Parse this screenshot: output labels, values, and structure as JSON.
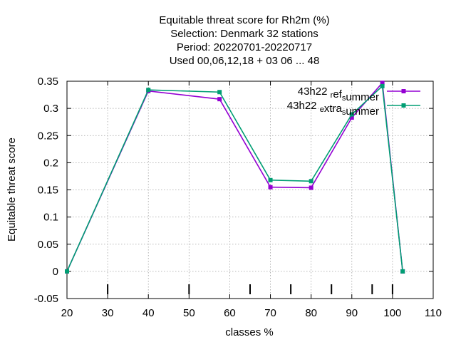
{
  "chart_data": {
    "type": "line",
    "title_lines": [
      "Equitable threat score  for Rh2m (%)",
      "Selection: Denmark     32 stations",
      "Period: 20220701-20220717",
      "Used  00,06,12,18  + 03 06 ... 48"
    ],
    "xlabel": "classes %",
    "ylabel": "Equitable threat score",
    "xlim": [
      20,
      110
    ],
    "ylim": [
      -0.05,
      0.35
    ],
    "x_ticks": [
      "20",
      "30",
      "40",
      "50",
      "60",
      "70",
      "80",
      "90",
      "100",
      "110"
    ],
    "y_ticks": [
      "-0.05",
      "0",
      "0.05",
      "0.1",
      "0.15",
      "0.2",
      "0.25",
      "0.3",
      "0.35"
    ],
    "class_markers": [
      30,
      50,
      65,
      75,
      85,
      95,
      100
    ],
    "grid": true,
    "legend_position": "top-right",
    "series": [
      {
        "name": "43h22_ref_summer",
        "legend_parts": [
          {
            "text": "43h22 "
          },
          {
            "text": "r",
            "sub": true
          },
          {
            "text": "ef"
          },
          {
            "text": "s",
            "sub": true
          },
          {
            "text": "ummer"
          }
        ],
        "color": "#9400d3",
        "x": [
          20,
          40,
          57.5,
          70,
          80,
          90,
          97.5,
          102.5
        ],
        "y": [
          0.0,
          0.332,
          0.317,
          0.155,
          0.154,
          0.283,
          0.347,
          0.0
        ]
      },
      {
        "name": "43h22_extra_summer",
        "legend_parts": [
          {
            "text": "43h22 "
          },
          {
            "text": "e",
            "sub": true
          },
          {
            "text": "xtra"
          },
          {
            "text": "s",
            "sub": true
          },
          {
            "text": "ummer"
          }
        ],
        "color": "#009e73",
        "x": [
          20,
          40,
          57.5,
          70,
          80,
          90,
          97.5,
          102.5
        ],
        "y": [
          0.0,
          0.334,
          0.33,
          0.168,
          0.166,
          0.289,
          0.341,
          0.0
        ]
      }
    ]
  }
}
